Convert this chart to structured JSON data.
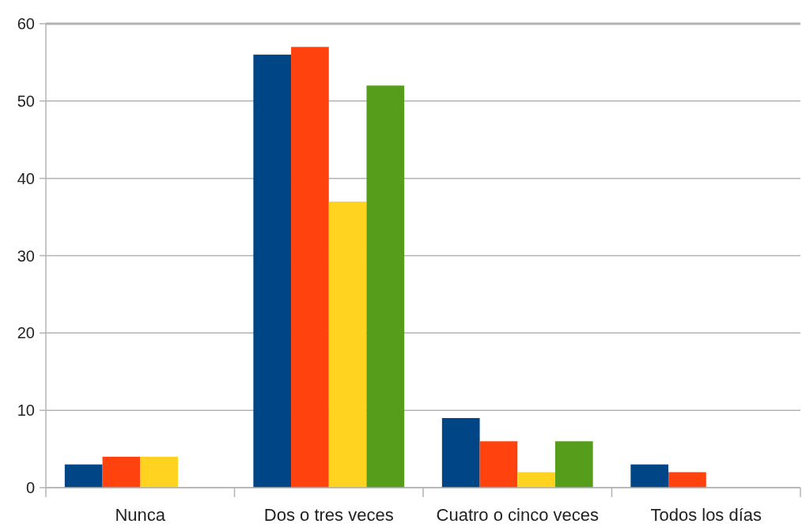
{
  "chart_data": {
    "type": "bar",
    "categories": [
      "Nunca",
      "Dos o tres veces",
      "Cuatro o cinco veces",
      "Todos los días"
    ],
    "series": [
      {
        "color": "#004586",
        "values": [
          3,
          56,
          9,
          3
        ]
      },
      {
        "color": "#ff420e",
        "values": [
          4,
          57,
          6,
          2
        ]
      },
      {
        "color": "#ffd320",
        "values": [
          4,
          37,
          2,
          0
        ]
      },
      {
        "color": "#579d1c",
        "values": [
          0,
          52,
          6,
          0
        ]
      }
    ],
    "ylim": [
      0,
      60
    ],
    "yticks": [
      0,
      10,
      20,
      30,
      40,
      50,
      60
    ],
    "grid": "y"
  }
}
